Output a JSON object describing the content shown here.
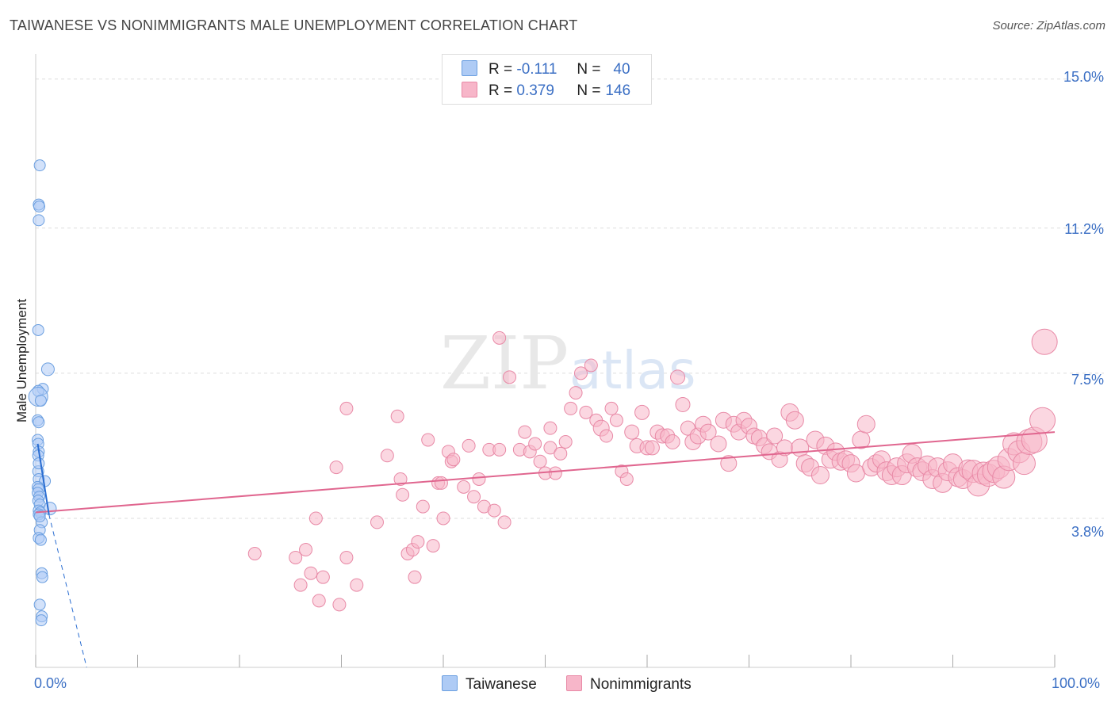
{
  "header": {
    "title": "TAIWANESE VS NONIMMIGRANTS MALE UNEMPLOYMENT CORRELATION CHART",
    "source": "Source: ZipAtlas.com"
  },
  "watermark": {
    "zip": "ZIP",
    "atlas": "atlas"
  },
  "colors": {
    "taiwanese_fill": "#aecbf5",
    "taiwanese_stroke": "#6b9fe0",
    "taiwanese_line": "#2a6dd1",
    "nonimm_fill": "#f7b6c9",
    "nonimm_stroke": "#e889a6",
    "nonimm_line": "#e0668f",
    "tick_text": "#3b6fc4",
    "grid": "#dddddd"
  },
  "legend": {
    "rows": [
      {
        "r_label": "R = ",
        "r_value": "-0.111",
        "n_label": "N = ",
        "n_value": "40"
      },
      {
        "r_label": "R = ",
        "r_value": "0.379",
        "n_label": "N = ",
        "n_value": "146"
      }
    ]
  },
  "chart_data": {
    "type": "scatter",
    "title": "TAIWANESE VS NONIMMIGRANTS MALE UNEMPLOYMENT CORRELATION CHART",
    "xlabel": "",
    "ylabel": "Male Unemployment",
    "xlim": [
      0,
      100
    ],
    "ylim": [
      0,
      15.5
    ],
    "x_tick_labels": [
      "0.0%",
      "100.0%"
    ],
    "y_ticks": [
      3.8,
      7.5,
      11.2,
      15.0
    ],
    "y_tick_labels": [
      "3.8%",
      "7.5%",
      "11.2%",
      "15.0%"
    ],
    "grid": true,
    "legend_position": "top-center",
    "series": [
      {
        "name": "Taiwanese",
        "points": [
          [
            0.4,
            12.8
          ],
          [
            0.3,
            11.8
          ],
          [
            0.35,
            11.75
          ],
          [
            0.3,
            11.4
          ],
          [
            0.25,
            8.6
          ],
          [
            1.2,
            7.6
          ],
          [
            0.7,
            7.1
          ],
          [
            0.25,
            7.05
          ],
          [
            0.25,
            6.9
          ],
          [
            0.5,
            6.8
          ],
          [
            0.2,
            6.3
          ],
          [
            0.3,
            6.25
          ],
          [
            0.2,
            5.8
          ],
          [
            0.25,
            5.7
          ],
          [
            0.3,
            5.5
          ],
          [
            0.25,
            5.4
          ],
          [
            0.25,
            5.0
          ],
          [
            0.3,
            4.8
          ],
          [
            0.9,
            4.75
          ],
          [
            0.2,
            4.6
          ],
          [
            0.3,
            4.55
          ],
          [
            0.2,
            4.45
          ],
          [
            0.35,
            4.35
          ],
          [
            0.25,
            4.25
          ],
          [
            0.4,
            4.15
          ],
          [
            1.4,
            4.05
          ],
          [
            0.3,
            4.0
          ],
          [
            0.45,
            3.95
          ],
          [
            0.3,
            3.9
          ],
          [
            0.6,
            3.7
          ],
          [
            0.4,
            3.5
          ],
          [
            0.3,
            3.3
          ],
          [
            0.5,
            3.25
          ],
          [
            0.6,
            2.4
          ],
          [
            0.65,
            2.3
          ],
          [
            0.4,
            1.6
          ],
          [
            0.6,
            1.3
          ],
          [
            0.55,
            1.2
          ],
          [
            0.3,
            5.2
          ],
          [
            0.4,
            3.85
          ]
        ],
        "sizes": [
          7,
          7,
          7,
          7,
          7,
          8,
          7,
          7,
          12,
          7,
          7,
          7,
          7,
          7,
          7,
          7,
          7,
          7,
          7,
          7,
          7,
          7,
          7,
          7,
          7,
          8,
          7,
          7,
          7,
          7,
          7,
          7,
          7,
          7,
          7,
          7,
          7,
          7,
          7,
          7
        ],
        "trend": {
          "solid": [
            [
              0.2,
              5.7
            ],
            [
              1.3,
              3.9
            ]
          ],
          "dashed": [
            [
              1.3,
              3.9
            ],
            [
              5.0,
              0.0
            ]
          ]
        }
      },
      {
        "name": "Nonimmigrants",
        "points": [
          [
            21.5,
            2.9
          ],
          [
            25.5,
            2.8
          ],
          [
            26,
            2.1
          ],
          [
            26.5,
            3.0
          ],
          [
            27,
            2.4
          ],
          [
            27.5,
            3.8
          ],
          [
            27.8,
            1.7
          ],
          [
            28.2,
            2.3
          ],
          [
            29.5,
            5.1
          ],
          [
            29.8,
            1.6
          ],
          [
            30.5,
            6.6
          ],
          [
            30.5,
            2.8
          ],
          [
            31.5,
            2.1
          ],
          [
            33.5,
            3.7
          ],
          [
            34.5,
            5.4
          ],
          [
            35.5,
            6.4
          ],
          [
            35.8,
            4.8
          ],
          [
            36,
            4.4
          ],
          [
            36.5,
            2.9
          ],
          [
            37,
            3.0
          ],
          [
            37.2,
            2.3
          ],
          [
            37.5,
            3.2
          ],
          [
            38,
            4.1
          ],
          [
            38.5,
            5.8
          ],
          [
            39,
            3.1
          ],
          [
            39.5,
            4.7
          ],
          [
            39.8,
            4.7
          ],
          [
            40,
            3.8
          ],
          [
            40.5,
            5.5
          ],
          [
            40.8,
            5.25
          ],
          [
            41,
            5.3
          ],
          [
            42,
            4.6
          ],
          [
            42.5,
            5.65
          ],
          [
            43,
            4.35
          ],
          [
            43.5,
            4.8
          ],
          [
            44,
            4.1
          ],
          [
            44.5,
            5.55
          ],
          [
            45,
            4.0
          ],
          [
            45.5,
            5.55
          ],
          [
            45.5,
            8.4
          ],
          [
            46,
            3.7
          ],
          [
            46.5,
            7.4
          ],
          [
            47.5,
            5.55
          ],
          [
            48,
            6.0
          ],
          [
            48.5,
            5.5
          ],
          [
            49,
            5.7
          ],
          [
            49.5,
            5.25
          ],
          [
            50,
            4.95
          ],
          [
            50.5,
            6.1
          ],
          [
            50.5,
            5.6
          ],
          [
            51,
            4.95
          ],
          [
            51.5,
            5.45
          ],
          [
            52,
            5.75
          ],
          [
            52.5,
            6.6
          ],
          [
            53,
            7.0
          ],
          [
            53.5,
            7.5
          ],
          [
            54,
            6.5
          ],
          [
            54.5,
            7.7
          ],
          [
            55,
            6.3
          ],
          [
            55.5,
            6.1
          ],
          [
            56,
            5.9
          ],
          [
            56.5,
            6.6
          ],
          [
            57,
            6.3
          ],
          [
            57.5,
            5.0
          ],
          [
            58,
            4.8
          ],
          [
            58.5,
            6.0
          ],
          [
            59,
            5.65
          ],
          [
            59.5,
            6.5
          ],
          [
            60,
            5.6
          ],
          [
            60.5,
            5.6
          ],
          [
            61,
            6.0
          ],
          [
            61.5,
            5.9
          ],
          [
            62,
            5.9
          ],
          [
            62.5,
            5.75
          ],
          [
            63,
            7.4
          ],
          [
            63.5,
            6.7
          ],
          [
            64,
            6.1
          ],
          [
            64.5,
            5.75
          ],
          [
            65,
            5.9
          ],
          [
            65.5,
            6.2
          ],
          [
            66,
            6.0
          ],
          [
            67,
            5.7
          ],
          [
            67.5,
            6.3
          ],
          [
            68,
            5.2
          ],
          [
            68.5,
            6.2
          ],
          [
            69,
            6.0
          ],
          [
            69.5,
            6.3
          ],
          [
            70,
            6.15
          ],
          [
            70.5,
            5.9
          ],
          [
            71,
            5.85
          ],
          [
            71.5,
            5.65
          ],
          [
            72,
            5.5
          ],
          [
            72.5,
            5.9
          ],
          [
            73,
            5.3
          ],
          [
            73.5,
            5.6
          ],
          [
            74,
            6.5
          ],
          [
            74.5,
            6.3
          ],
          [
            75,
            5.6
          ],
          [
            75.5,
            5.2
          ],
          [
            76,
            5.1
          ],
          [
            76.5,
            5.8
          ],
          [
            77,
            4.9
          ],
          [
            77.5,
            5.65
          ],
          [
            78,
            5.3
          ],
          [
            78.5,
            5.5
          ],
          [
            79,
            5.25
          ],
          [
            79.5,
            5.3
          ],
          [
            80,
            5.2
          ],
          [
            80.5,
            4.95
          ],
          [
            81,
            5.8
          ],
          [
            81.5,
            6.2
          ],
          [
            82,
            5.1
          ],
          [
            82.5,
            5.2
          ],
          [
            83,
            5.3
          ],
          [
            83.5,
            5.0
          ],
          [
            84,
            4.9
          ],
          [
            84.5,
            5.1
          ],
          [
            85,
            4.9
          ],
          [
            85.5,
            5.2
          ],
          [
            86,
            5.45
          ],
          [
            86.5,
            5.1
          ],
          [
            87,
            5.0
          ],
          [
            87.5,
            5.15
          ],
          [
            88,
            4.8
          ],
          [
            88.5,
            5.1
          ],
          [
            89,
            4.7
          ],
          [
            89.5,
            5.0
          ],
          [
            90,
            5.2
          ],
          [
            90.5,
            4.85
          ],
          [
            91,
            4.8
          ],
          [
            91.5,
            5.05
          ],
          [
            92,
            5.0
          ],
          [
            92.5,
            4.65
          ],
          [
            93,
            4.95
          ],
          [
            93.5,
            4.9
          ],
          [
            94,
            5.0
          ],
          [
            94.5,
            5.1
          ],
          [
            95,
            4.85
          ],
          [
            95.5,
            5.3
          ],
          [
            96,
            5.7
          ],
          [
            96.5,
            5.5
          ],
          [
            97,
            5.2
          ],
          [
            97.5,
            5.75
          ],
          [
            98,
            5.8
          ],
          [
            98.8,
            6.3
          ],
          [
            99,
            8.3
          ]
        ],
        "sizes": [
          8,
          8,
          8,
          8,
          8,
          8,
          8,
          8,
          8,
          8,
          8,
          8,
          8,
          8,
          8,
          8,
          8,
          8,
          8,
          8,
          8,
          8,
          8,
          8,
          8,
          8,
          8,
          8,
          8,
          8,
          8,
          8,
          8,
          8,
          8,
          8,
          8,
          8,
          8,
          8,
          8,
          8,
          8,
          8,
          8,
          8,
          8,
          8,
          8,
          8,
          8,
          8,
          8,
          8,
          8,
          8,
          8,
          8,
          8,
          10,
          8,
          8,
          8,
          8,
          8,
          9,
          9,
          9,
          9,
          9,
          9,
          9,
          9,
          9,
          9,
          9,
          9,
          10,
          10,
          10,
          10,
          10,
          10,
          10,
          10,
          10,
          10,
          10,
          10,
          10,
          10,
          10,
          10,
          10,
          10,
          11,
          11,
          11,
          11,
          11,
          11,
          11,
          11,
          11,
          11,
          11,
          11,
          11,
          11,
          11,
          11,
          11,
          11,
          11,
          12,
          12,
          12,
          12,
          12,
          12,
          12,
          12,
          12,
          12,
          12,
          12,
          12,
          12,
          12,
          12,
          12,
          14,
          14,
          14,
          14,
          14,
          14,
          14,
          14,
          14,
          14,
          14,
          16,
          16,
          16,
          16,
          16,
          16,
          16,
          13
        ],
        "trend": {
          "solid": [
            [
              0,
              3.95
            ],
            [
              100,
              6.0
            ]
          ]
        }
      }
    ]
  }
}
